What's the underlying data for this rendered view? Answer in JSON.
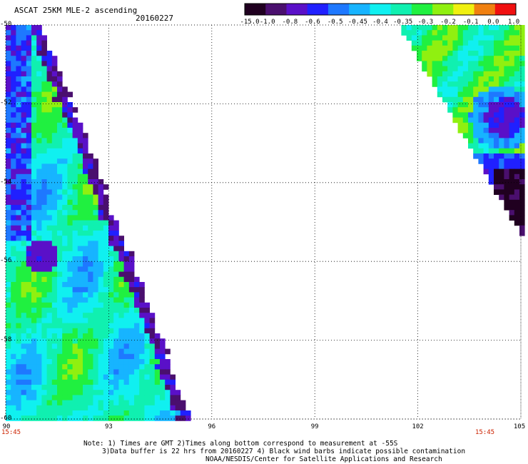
{
  "header": {
    "title": "ASCAT 25KM MLE-2 ascending",
    "date": "20160227"
  },
  "colorbar": {
    "labels": [
      "-15.0",
      "-1.0",
      "-0.8",
      "-0.6",
      "-0.5",
      "-0.45",
      "-0.4",
      "-0.35",
      "-0.3",
      "-0.2",
      "-0.1",
      "0.0",
      "1.0"
    ],
    "colors": [
      "#200020",
      "#4a0f6e",
      "#5a10c8",
      "#2020ff",
      "#1e78ff",
      "#17b4ff",
      "#10f0f0",
      "#10f0b0",
      "#20f040",
      "#90f010",
      "#f0f010",
      "#f08010",
      "#f01010"
    ]
  },
  "map": {
    "y_ticks": [
      "-50",
      "-52",
      "-54",
      "-56",
      "-58",
      "-60"
    ],
    "x_ticks": [
      "90",
      "93",
      "96",
      "99",
      "102",
      "105"
    ],
    "lat_range": [
      -60,
      -50
    ],
    "lon_range": [
      90,
      105
    ],
    "grid": true,
    "time_left": "15:45",
    "time_right": "15:45"
  },
  "notes": {
    "line1": "Note: 1) Times are GMT 2)Times along bottom correspond to measurement at -55S",
    "line2": "3)Data buffer is 22 hrs from 20160227 4) Black wind barbs indicate possible contamination",
    "line3": "NOAA/NESDIS/Center for Satellite Applications and Research"
  }
}
